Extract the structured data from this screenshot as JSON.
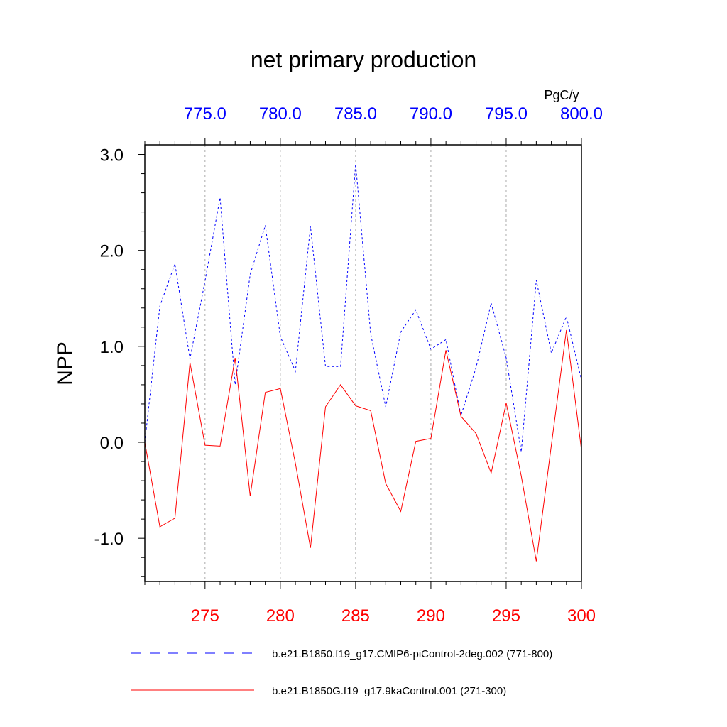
{
  "chart_data": {
    "type": "line",
    "title": "net primary production",
    "ylabel": "NPP",
    "units": "PgC/y",
    "ylim": [
      -1.45,
      3.1
    ],
    "yticks": [
      -1.0,
      0.0,
      1.0,
      2.0,
      3.0
    ],
    "ytick_labels": [
      "-1.0",
      "0.0",
      "1.0",
      "2.0",
      "3.0"
    ],
    "grid": "vertical dashed at major ticks",
    "x_bottom": {
      "range": [
        271,
        300
      ],
      "ticks": [
        275,
        280,
        285,
        290,
        295,
        300
      ],
      "tick_labels": [
        "275",
        "280",
        "285",
        "290",
        "295",
        "300"
      ],
      "color": "#ff0000"
    },
    "x_top": {
      "range": [
        771,
        800
      ],
      "ticks": [
        775,
        780,
        785,
        790,
        795,
        800
      ],
      "tick_labels": [
        "775.0",
        "780.0",
        "785.0",
        "790.0",
        "795.0",
        "800.0"
      ],
      "color": "#0000ff"
    },
    "series": [
      {
        "name": "b.e21.B1850.f19_g17.CMIP6-piControl-2deg.002 (771-800)",
        "axis": "top",
        "color": "#0000ff",
        "style": "dashed",
        "x": [
          771,
          772,
          773,
          774,
          775,
          776,
          777,
          778,
          779,
          780,
          781,
          782,
          783,
          784,
          785,
          786,
          787,
          788,
          789,
          790,
          791,
          792,
          793,
          794,
          795,
          796,
          797,
          798,
          799,
          800
        ],
        "values": [
          0.0,
          1.42,
          1.86,
          0.87,
          1.68,
          2.55,
          0.6,
          1.75,
          2.26,
          1.1,
          0.74,
          2.25,
          0.79,
          0.79,
          2.9,
          1.13,
          0.37,
          1.15,
          1.38,
          0.97,
          1.07,
          0.28,
          0.78,
          1.45,
          0.88,
          -0.1,
          1.69,
          0.93,
          1.31,
          0.65
        ]
      },
      {
        "name": "b.e21.B1850G.f19_g17.9kaControl.001 (271-300)",
        "axis": "bottom",
        "color": "#ff0000",
        "style": "solid",
        "x": [
          271,
          272,
          273,
          274,
          275,
          276,
          277,
          278,
          279,
          280,
          281,
          282,
          283,
          284,
          285,
          286,
          287,
          288,
          289,
          290,
          291,
          292,
          293,
          294,
          295,
          296,
          297,
          298,
          299,
          300
        ],
        "values": [
          0.0,
          -0.88,
          -0.79,
          0.83,
          -0.03,
          -0.04,
          0.88,
          -0.56,
          0.52,
          0.56,
          -0.22,
          -1.1,
          0.37,
          0.6,
          0.38,
          0.33,
          -0.43,
          -0.72,
          0.01,
          0.04,
          0.96,
          0.27,
          0.09,
          -0.32,
          0.41,
          -0.35,
          -1.24,
          -0.03,
          1.17,
          -0.08
        ]
      }
    ],
    "legend_position": "bottom"
  }
}
